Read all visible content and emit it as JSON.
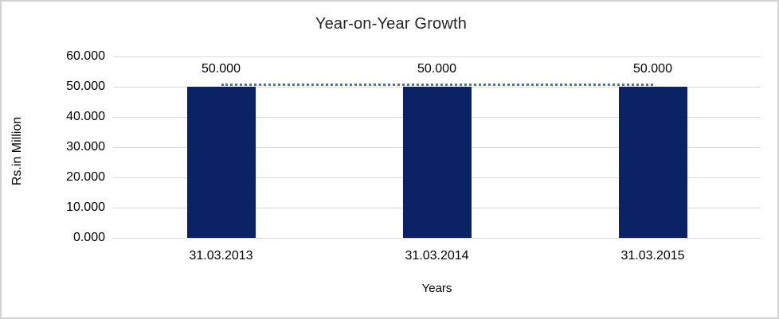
{
  "chart": {
    "title": "Year-on-Year Growth",
    "xlabel": "Years",
    "ylabel": "Rs.in Million"
  },
  "chart_data": {
    "type": "bar",
    "title": "Year-on-Year Growth",
    "xlabel": "Years",
    "ylabel": "Rs.in Million",
    "categories": [
      "31.03.2013",
      "31.03.2014",
      "31.03.2015"
    ],
    "series": [
      {
        "type": "bar",
        "values": [
          50,
          50,
          50
        ],
        "value_labels": [
          "50.000",
          "50.000",
          "50.000"
        ],
        "color": "#0b2365"
      },
      {
        "type": "line",
        "style": "dotted",
        "values": [
          50,
          50,
          50
        ],
        "color": "#4472c4"
      }
    ],
    "ylim": [
      0,
      60
    ],
    "ytick_step": 10,
    "ytick_labels": [
      "0.000",
      "10.000",
      "20.000",
      "30.000",
      "40.000",
      "50.000",
      "60.000"
    ],
    "grid": "horizontal",
    "gridline_color": "#d9d9d9",
    "legend": "none"
  }
}
